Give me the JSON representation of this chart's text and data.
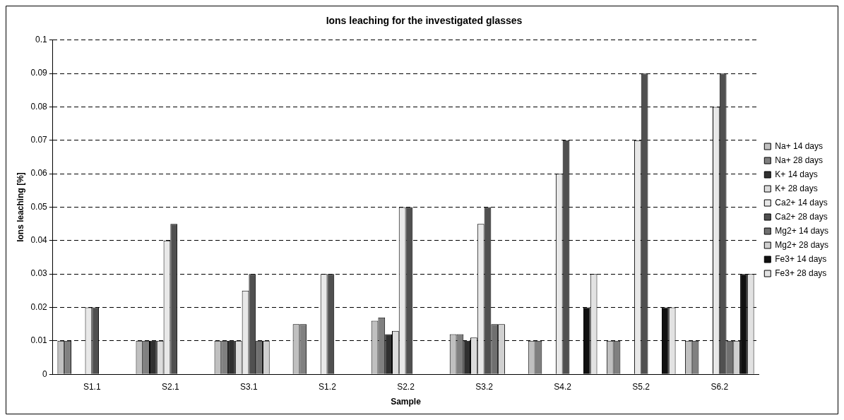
{
  "chart_data": {
    "type": "bar",
    "title": "Ions leaching for the investigated glasses",
    "xlabel": "Sample",
    "ylabel": "Ions leaching [%]",
    "categories": [
      "S1.1",
      "S2.1",
      "S3.1",
      "S1.2",
      "S2.2",
      "S3.2",
      "S4.2",
      "S5.2",
      "S6.2"
    ],
    "series": [
      {
        "name": "Na+ 14 days",
        "color": "#c0c0c0",
        "values": [
          0.01,
          0.01,
          0.01,
          0.015,
          0.016,
          0.012,
          0.01,
          0.01,
          0.01
        ]
      },
      {
        "name": "Na+ 28 days",
        "color": "#808080",
        "values": [
          0.01,
          0.01,
          0.01,
          0.015,
          0.017,
          0.012,
          0.01,
          0.01,
          0.01
        ]
      },
      {
        "name": "K+ 14 days",
        "color": "#303030",
        "values": [
          null,
          0.01,
          0.01,
          null,
          0.012,
          0.01,
          null,
          null,
          null
        ]
      },
      {
        "name": "K+ 28 days",
        "color": "#dcdcdc",
        "values": [
          null,
          0.01,
          0.01,
          null,
          0.013,
          0.011,
          null,
          null,
          null
        ]
      },
      {
        "name": "Ca2+ 14 days",
        "color": "#e8e8e8",
        "values": [
          0.02,
          0.04,
          0.025,
          0.03,
          0.05,
          0.045,
          0.06,
          0.07,
          0.08
        ]
      },
      {
        "name": "Ca2+ 28 days",
        "color": "#505050",
        "values": [
          0.02,
          0.045,
          0.03,
          0.03,
          0.05,
          0.05,
          0.07,
          0.09,
          0.09
        ]
      },
      {
        "name": "Mg2+ 14 days",
        "color": "#707070",
        "values": [
          null,
          null,
          0.01,
          null,
          null,
          0.015,
          null,
          null,
          0.01
        ]
      },
      {
        "name": "Mg2+ 28 days",
        "color": "#d0d0d0",
        "values": [
          null,
          null,
          0.01,
          null,
          null,
          0.015,
          null,
          null,
          0.01
        ]
      },
      {
        "name": "Fe3+ 14 days",
        "color": "#101010",
        "values": [
          null,
          null,
          null,
          null,
          null,
          null,
          0.02,
          0.02,
          0.03
        ]
      },
      {
        "name": "Fe3+ 28 days",
        "color": "#e2e2e2",
        "values": [
          null,
          null,
          null,
          null,
          null,
          null,
          0.03,
          0.02,
          0.03
        ]
      }
    ],
    "ylim": [
      0,
      0.1
    ],
    "yticks": [
      0,
      0.01,
      0.02,
      0.03,
      0.04,
      0.05,
      0.06,
      0.07,
      0.08,
      0.09,
      0.1
    ],
    "grid": "y",
    "legend": "right"
  }
}
